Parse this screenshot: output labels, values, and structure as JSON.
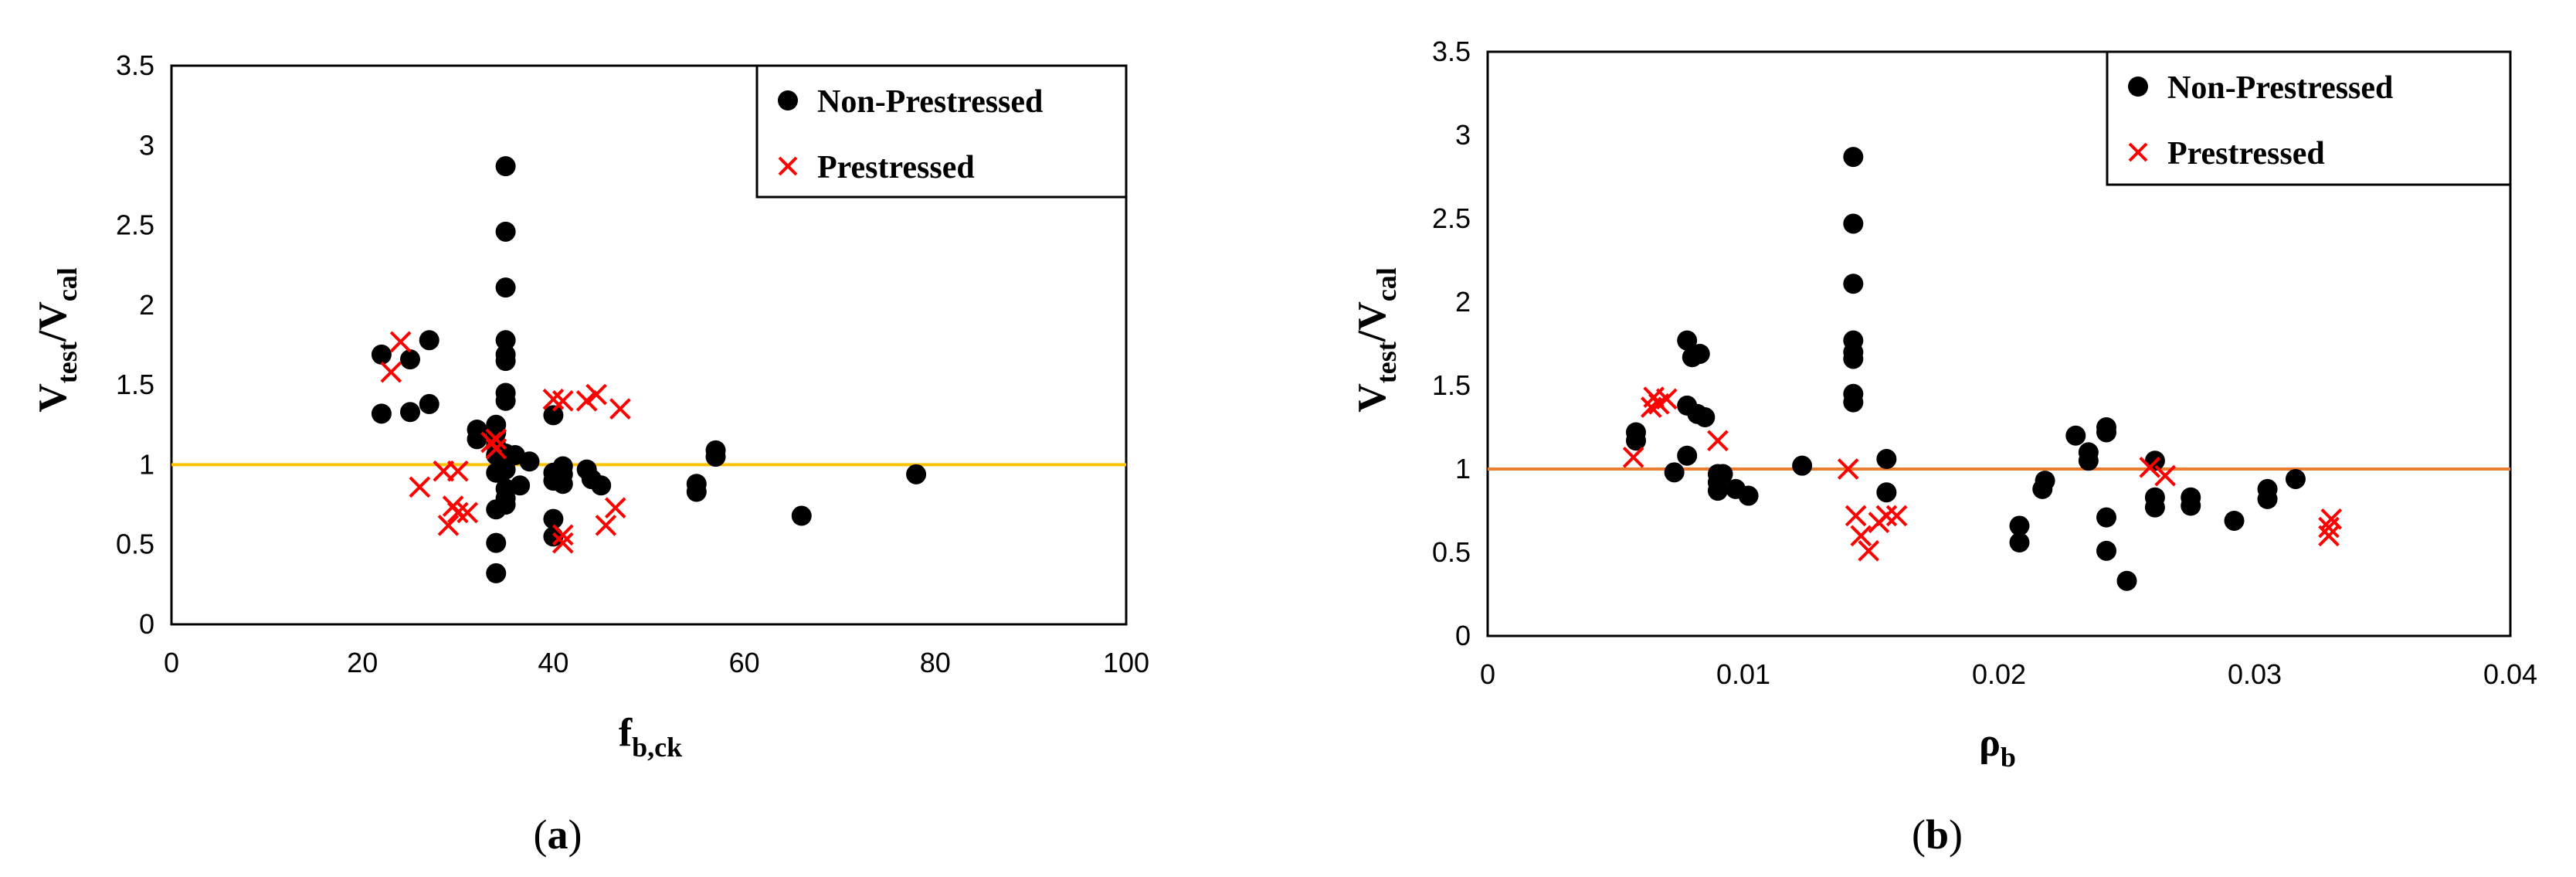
{
  "chart_data": [
    {
      "type": "scatter",
      "caption_letter": "a",
      "xlabel": {
        "main": "f",
        "sub": "b,ck"
      },
      "ylabel": {
        "main": "V",
        "sub1": "test",
        "slash": "/",
        "main2": "V",
        "sub2": "cal"
      },
      "xlim": [
        0,
        100
      ],
      "ylim": [
        0,
        3.5
      ],
      "xticks": [
        "0",
        "20",
        "40",
        "60",
        "80",
        "100"
      ],
      "yticks": [
        "0",
        "0.5",
        "1",
        "1.5",
        "2",
        "2.5",
        "3",
        "3.5"
      ],
      "grid": false,
      "legend_position": "top-right",
      "reference_line": {
        "y": 1,
        "color": "#FFC000"
      },
      "series": [
        {
          "name": "Non-Prestressed",
          "marker": "circle",
          "color": "#000000",
          "points": [
            [
              22,
              1.69
            ],
            [
              22,
              1.32
            ],
            [
              25,
              1.66
            ],
            [
              25,
              1.33
            ],
            [
              27,
              1.78
            ],
            [
              27,
              1.38
            ],
            [
              32,
              1.22
            ],
            [
              32,
              1.16
            ],
            [
              34,
              1.25
            ],
            [
              34,
              1.2
            ],
            [
              34,
              1.12
            ],
            [
              34,
              1.06
            ],
            [
              34,
              0.95
            ],
            [
              34,
              0.72
            ],
            [
              34,
              0.51
            ],
            [
              34,
              0.32
            ],
            [
              35,
              2.87
            ],
            [
              35,
              2.46
            ],
            [
              35,
              2.11
            ],
            [
              35,
              1.78
            ],
            [
              35,
              1.69
            ],
            [
              35,
              1.65
            ],
            [
              35,
              1.45
            ],
            [
              35,
              1.4
            ],
            [
              35,
              1.07
            ],
            [
              35,
              1.02
            ],
            [
              35,
              0.97
            ],
            [
              35,
              0.85
            ],
            [
              35,
              0.79
            ],
            [
              35,
              0.75
            ],
            [
              36,
              1.06
            ],
            [
              36.5,
              0.87
            ],
            [
              37.5,
              1.02
            ],
            [
              40,
              1.31
            ],
            [
              40,
              0.95
            ],
            [
              40,
              0.9
            ],
            [
              40,
              0.66
            ],
            [
              40,
              0.55
            ],
            [
              41,
              0.99
            ],
            [
              41,
              0.94
            ],
            [
              41,
              0.88
            ],
            [
              43.5,
              0.97
            ],
            [
              44,
              0.91
            ],
            [
              45,
              0.87
            ],
            [
              55,
              0.88
            ],
            [
              55,
              0.83
            ],
            [
              57,
              1.09
            ],
            [
              57,
              1.05
            ],
            [
              66,
              0.68
            ],
            [
              78,
              0.94
            ]
          ]
        },
        {
          "name": "Prestressed",
          "marker": "x",
          "color": "#FF0000",
          "points": [
            [
              23,
              1.58
            ],
            [
              24,
              1.77
            ],
            [
              26,
              0.86
            ],
            [
              28.5,
              0.96
            ],
            [
              29,
              0.62
            ],
            [
              29.5,
              0.74
            ],
            [
              30,
              0.96
            ],
            [
              30,
              0.7
            ],
            [
              31,
              0.7
            ],
            [
              33.5,
              1.14
            ],
            [
              34,
              1.16
            ],
            [
              34,
              1.1
            ],
            [
              40,
              1.41
            ],
            [
              41,
              1.4
            ],
            [
              41,
              0.56
            ],
            [
              41,
              0.51
            ],
            [
              43.5,
              1.4
            ],
            [
              44.5,
              1.44
            ],
            [
              45.5,
              0.62
            ],
            [
              46.5,
              0.73
            ],
            [
              47,
              1.35
            ]
          ]
        }
      ]
    },
    {
      "type": "scatter",
      "caption_letter": "b",
      "xlabel": {
        "main": "ρ",
        "sub": "b"
      },
      "ylabel": {
        "main": "V",
        "sub1": "test",
        "slash": "/",
        "main2": "V",
        "sub2": "cal"
      },
      "xlim": [
        0,
        0.04
      ],
      "ylim": [
        0,
        3.5
      ],
      "xticks": [
        "0",
        "0.01",
        "0.02",
        "0.03",
        "0.04"
      ],
      "yticks": [
        "0",
        "0.5",
        "1",
        "1.5",
        "2",
        "2.5",
        "3",
        "3.5"
      ],
      "grid": false,
      "legend_position": "top-right",
      "reference_line": {
        "y": 1,
        "color": "#ED7D31"
      },
      "series": [
        {
          "name": "Non-Prestressed",
          "marker": "circle",
          "color": "#000000",
          "points": [
            [
              0.0058,
              1.22
            ],
            [
              0.0058,
              1.17
            ],
            [
              0.0073,
              0.98
            ],
            [
              0.0078,
              1.77
            ],
            [
              0.0078,
              1.38
            ],
            [
              0.0078,
              1.08
            ],
            [
              0.008,
              1.67
            ],
            [
              0.0082,
              1.33
            ],
            [
              0.0083,
              1.69
            ],
            [
              0.0085,
              1.31
            ],
            [
              0.009,
              0.97
            ],
            [
              0.009,
              0.92
            ],
            [
              0.009,
              0.87
            ],
            [
              0.0092,
              0.97
            ],
            [
              0.0097,
              0.88
            ],
            [
              0.0102,
              0.84
            ],
            [
              0.0123,
              1.02
            ],
            [
              0.0143,
              2.87
            ],
            [
              0.0143,
              2.47
            ],
            [
              0.0143,
              2.11
            ],
            [
              0.0143,
              1.77
            ],
            [
              0.0143,
              1.7
            ],
            [
              0.0143,
              1.66
            ],
            [
              0.0143,
              1.45
            ],
            [
              0.0143,
              1.4
            ],
            [
              0.0156,
              1.06
            ],
            [
              0.0156,
              0.86
            ],
            [
              0.0208,
              0.66
            ],
            [
              0.0208,
              0.56
            ],
            [
              0.0217,
              0.88
            ],
            [
              0.0218,
              0.93
            ],
            [
              0.023,
              1.2
            ],
            [
              0.0235,
              1.1
            ],
            [
              0.0235,
              1.05
            ],
            [
              0.0242,
              1.25
            ],
            [
              0.0242,
              1.22
            ],
            [
              0.0242,
              0.71
            ],
            [
              0.0242,
              0.51
            ],
            [
              0.025,
              0.33
            ],
            [
              0.0261,
              1.05
            ],
            [
              0.0261,
              0.83
            ],
            [
              0.0261,
              0.77
            ],
            [
              0.0275,
              0.83
            ],
            [
              0.0275,
              0.78
            ],
            [
              0.0292,
              0.69
            ],
            [
              0.0305,
              0.88
            ],
            [
              0.0305,
              0.82
            ],
            [
              0.0316,
              0.94
            ]
          ]
        },
        {
          "name": "Prestressed",
          "marker": "x",
          "color": "#FF0000",
          "points": [
            [
              0.0057,
              1.07
            ],
            [
              0.0064,
              1.37
            ],
            [
              0.0065,
              1.43
            ],
            [
              0.0067,
              1.39
            ],
            [
              0.007,
              1.42
            ],
            [
              0.009,
              1.17
            ],
            [
              0.0141,
              1.0
            ],
            [
              0.0144,
              0.72
            ],
            [
              0.0146,
              0.6
            ],
            [
              0.0149,
              0.51
            ],
            [
              0.0153,
              0.68
            ],
            [
              0.0156,
              0.72
            ],
            [
              0.016,
              0.72
            ],
            [
              0.0259,
              1.01
            ],
            [
              0.0265,
              0.96
            ],
            [
              0.0329,
              0.6
            ],
            [
              0.0329,
              0.65
            ],
            [
              0.033,
              0.7
            ]
          ]
        }
      ]
    }
  ]
}
